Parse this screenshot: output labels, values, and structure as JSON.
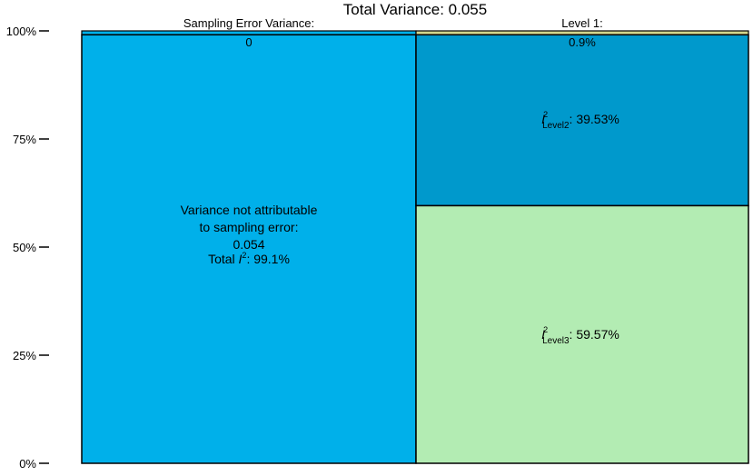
{
  "chart_data": {
    "type": "mosaic",
    "title": "Total Variance: 0.055",
    "y_axis": {
      "ticks": [
        "0%",
        "25%",
        "50%",
        "75%",
        "100%"
      ],
      "tick_values": [
        0,
        25,
        50,
        75,
        100
      ],
      "range": [
        0,
        100
      ]
    },
    "columns": [
      {
        "header": "Sampling Error Variance:",
        "value_label": "0",
        "share_percent": 0.9,
        "segments": [
          {
            "id": "not-attributable",
            "share_percent": 100,
            "color": "#00b0ea",
            "text_lines": [
              "Variance not attributable",
              "to sampling error:",
              "0.054"
            ],
            "total_i2": {
              "prefix": "Total ",
              "sym": "I",
              "sup": "2",
              "suffix": ": 99.1%"
            }
          }
        ]
      },
      {
        "header": "Level 1:",
        "value_label": "0.9%",
        "share_percent": 0.9,
        "segments": [
          {
            "id": "level2",
            "share_percent": 39.53,
            "color": "#0099cc",
            "label": {
              "sym": "I",
              "sup": "2",
              "sub": "Level2",
              "suffix": ": 39.53%"
            }
          },
          {
            "id": "level3",
            "share_percent": 59.57,
            "color": "#b3ecb3",
            "label": {
              "sym": "I",
              "sup": "2",
              "sub": "Level3",
              "suffix": ": 59.57%"
            }
          }
        ]
      }
    ],
    "colors": {
      "sampling_error_strip": "#00b0ea",
      "level1_strip": "#d2d58c",
      "border": "#000000"
    }
  }
}
